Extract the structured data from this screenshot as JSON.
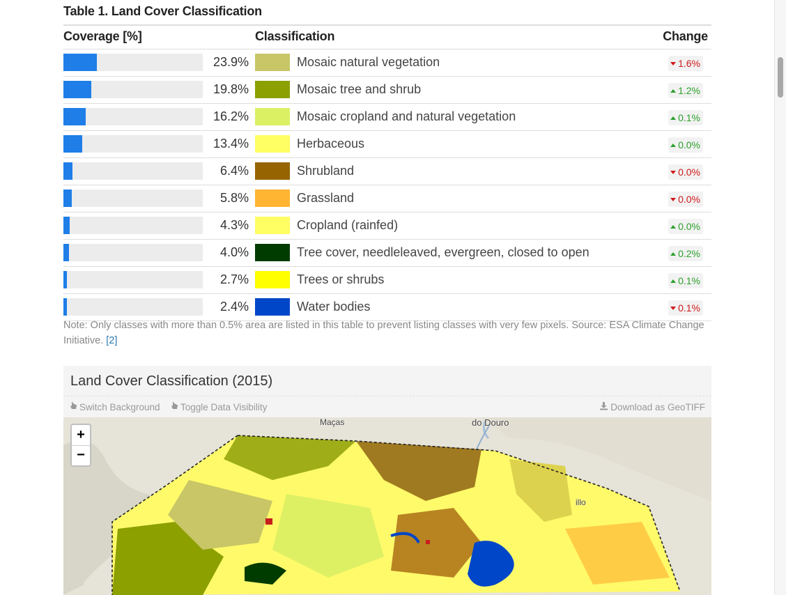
{
  "table": {
    "caption": "Table 1. Land Cover Classification",
    "headers": {
      "coverage": "Coverage [%]",
      "classification": "Classification",
      "change": "Change"
    },
    "rows": [
      {
        "coverage": 23.9,
        "coverage_label": "23.9%",
        "color": "#c8c666",
        "label": "Mosaic natural vegetation",
        "change": "1.6%",
        "direction": "down"
      },
      {
        "coverage": 19.8,
        "coverage_label": "19.8%",
        "color": "#8ca000",
        "label": "Mosaic tree and shrub",
        "change": "1.2%",
        "direction": "up"
      },
      {
        "coverage": 16.2,
        "coverage_label": "16.2%",
        "color": "#dcf064",
        "label": "Mosaic cropland and natural vegetation",
        "change": "0.1%",
        "direction": "up"
      },
      {
        "coverage": 13.4,
        "coverage_label": "13.4%",
        "color": "#ffff64",
        "label": "Herbaceous",
        "change": "0.0%",
        "direction": "up"
      },
      {
        "coverage": 6.4,
        "coverage_label": "6.4%",
        "color": "#966400",
        "label": "Shrubland",
        "change": "0.0%",
        "direction": "down"
      },
      {
        "coverage": 5.8,
        "coverage_label": "5.8%",
        "color": "#ffb432",
        "label": "Grassland",
        "change": "0.0%",
        "direction": "down"
      },
      {
        "coverage": 4.3,
        "coverage_label": "4.3%",
        "color": "#ffff64",
        "label": "Cropland (rainfed)",
        "change": "0.0%",
        "direction": "up"
      },
      {
        "coverage": 4.0,
        "coverage_label": "4.0%",
        "color": "#003c00",
        "label": "Tree cover, needleleaved, evergreen, closed to open",
        "change": "0.2%",
        "direction": "up"
      },
      {
        "coverage": 2.7,
        "coverage_label": "2.7%",
        "color": "#ffff00",
        "label": "Trees or shrubs",
        "change": "0.1%",
        "direction": "up"
      },
      {
        "coverage": 2.4,
        "coverage_label": "2.4%",
        "color": "#0046c8",
        "label": "Water bodies",
        "change": "0.1%",
        "direction": "down"
      }
    ],
    "note": "Note: Only classes with more than 0.5% area are listed in this table to prevent listing classes with very few pixels. Source: ESA Climate Change Initiative.",
    "note_ref": "[2]"
  },
  "map": {
    "title": "Land Cover Classification (2015)",
    "toolbar": {
      "switch_background": "Switch Background",
      "toggle_visibility": "Toggle Data Visibility",
      "download": "Download as GeoTIFF"
    },
    "zoom_in": "+",
    "zoom_out": "−",
    "place_labels": {
      "top_left": "Maças",
      "top_center": "do Douro",
      "right": "illo"
    }
  },
  "colors": {
    "bar": "#1f7ee8",
    "up": "#2ca02c",
    "down": "#d0191b"
  }
}
